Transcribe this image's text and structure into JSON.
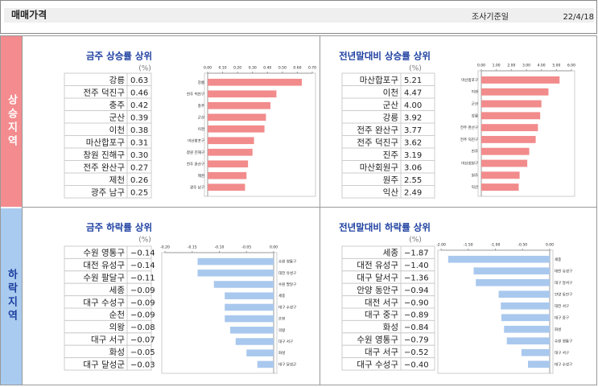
{
  "header": {
    "title": "매매가격",
    "date_label": "조사기준일",
    "date": "22/4/18"
  },
  "sections": [
    "상승지역",
    "하락지역"
  ],
  "chart_data": [
    {
      "type": "bar",
      "title": "금주 상승률 상위",
      "unit": "(%)",
      "color": "#f28b8b",
      "categories": [
        "강릉",
        "전주 덕진구",
        "충주",
        "군산",
        "이천",
        "마산합포구",
        "창원 진해구",
        "전주 완산구",
        "제천",
        "광주 남구"
      ],
      "values": [
        0.63,
        0.46,
        0.42,
        0.39,
        0.38,
        0.31,
        0.3,
        0.27,
        0.26,
        0.25
      ],
      "value_labels": [
        "0.63",
        "0.46",
        "0.42",
        "0.39",
        "0.38",
        "0.31",
        "0.30",
        "0.27",
        "0.26",
        "0.25"
      ],
      "xlim": [
        0,
        0.7
      ],
      "xticks": [
        {
          "value": 0,
          "label": "0.00"
        },
        {
          "value": 0.1,
          "label": "0.10"
        },
        {
          "value": 0.2,
          "label": "0.20"
        },
        {
          "value": 0.3,
          "label": "0.30"
        },
        {
          "value": 0.4,
          "label": "0.40"
        },
        {
          "value": 0.5,
          "label": "0.50"
        },
        {
          "value": 0.6,
          "label": "0.60"
        },
        {
          "value": 0.7,
          "label": "0.70"
        }
      ]
    },
    {
      "type": "bar",
      "title": "전년말대비 상승률 상위",
      "unit": "(%)",
      "color": "#f28b8b",
      "categories": [
        "마산합포구",
        "이천",
        "군산",
        "강릉",
        "전주 완산구",
        "전주 덕진구",
        "진주",
        "마산회원구",
        "원주",
        "익산"
      ],
      "values": [
        5.21,
        4.47,
        4.0,
        3.92,
        3.77,
        3.62,
        3.19,
        3.06,
        2.55,
        2.49
      ],
      "value_labels": [
        "5.21",
        "4.47",
        "4.00",
        "3.92",
        "3.77",
        "3.62",
        "3.19",
        "3.06",
        "2.55",
        "2.49"
      ],
      "xlim": [
        0,
        6
      ],
      "xticks": [
        {
          "value": 0,
          "label": "0.00"
        },
        {
          "value": 1,
          "label": "1.00"
        },
        {
          "value": 2,
          "label": "2.00"
        },
        {
          "value": 3,
          "label": "3.00"
        },
        {
          "value": 4,
          "label": "4.00"
        },
        {
          "value": 5,
          "label": "5.00"
        },
        {
          "value": 6,
          "label": "6.00"
        }
      ]
    },
    {
      "type": "bar",
      "title": "금주 하락률 상위",
      "unit": "(%)",
      "color": "#a9c8ee",
      "categories": [
        "수원 영통구",
        "대전 유성구",
        "수원 팔달구",
        "세종",
        "대구 수성구",
        "순천",
        "의왕",
        "대구 서구",
        "화성",
        "대구 달성군"
      ],
      "values": [
        -0.14,
        -0.14,
        -0.11,
        -0.09,
        -0.09,
        -0.09,
        -0.08,
        -0.07,
        -0.05,
        -0.03
      ],
      "value_labels": [
        "−0.14",
        "−0.14",
        "−0.11",
        "−0.09",
        "−0.09",
        "−0.09",
        "−0.08",
        "−0.07",
        "−0.05",
        "−0.03"
      ],
      "xlim": [
        -0.2,
        0
      ],
      "xticks": [
        {
          "value": -0.2,
          "label": "-0.20"
        },
        {
          "value": -0.15,
          "label": "-0.15"
        },
        {
          "value": -0.1,
          "label": "-0.10"
        },
        {
          "value": -0.05,
          "label": "-0.05"
        },
        {
          "value": 0,
          "label": "0.00"
        }
      ]
    },
    {
      "type": "bar",
      "title": "전년말대비 하락률 상위",
      "unit": "(%)",
      "color": "#a9c8ee",
      "categories": [
        "세종",
        "대전 유성구",
        "대구 달서구",
        "안양 동안구",
        "대전 서구",
        "대구 중구",
        "화성",
        "수원 영통구",
        "대구 서구",
        "대구 수성구"
      ],
      "values": [
        -1.87,
        -1.4,
        -1.36,
        -0.94,
        -0.9,
        -0.89,
        -0.84,
        -0.79,
        -0.52,
        -0.4
      ],
      "value_labels": [
        "−1.87",
        "−1.40",
        "−1.36",
        "−0.94",
        "−0.90",
        "−0.89",
        "−0.84",
        "−0.79",
        "−0.52",
        "−0.40"
      ],
      "xlim": [
        -2,
        0
      ],
      "xticks": [
        {
          "value": -2,
          "label": "-2.00"
        },
        {
          "value": -1.5,
          "label": "-1.50"
        },
        {
          "value": -1,
          "label": "-1.00"
        },
        {
          "value": -0.5,
          "label": "-0.50"
        },
        {
          "value": 0,
          "label": "0.00"
        }
      ]
    }
  ]
}
